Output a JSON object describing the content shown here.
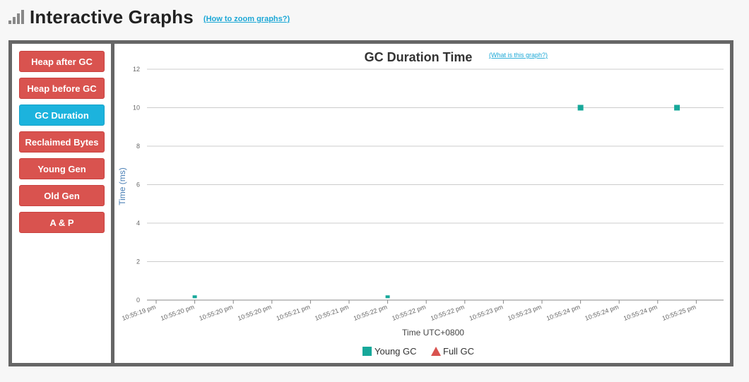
{
  "header": {
    "title": "Interactive Graphs",
    "zoom_link": "(How to zoom graphs?)"
  },
  "sidebar": {
    "items": [
      {
        "label": "Heap after GC",
        "active": false
      },
      {
        "label": "Heap before GC",
        "active": false
      },
      {
        "label": "GC Duration",
        "active": true
      },
      {
        "label": "Reclaimed Bytes",
        "active": false
      },
      {
        "label": "Young Gen",
        "active": false
      },
      {
        "label": "Old Gen",
        "active": false
      },
      {
        "label": "A & P",
        "active": false
      }
    ]
  },
  "colors": {
    "active": "#1cb3dd",
    "inactive": "#d9534f",
    "young_gc": "#17a89a",
    "full_gc": "#d9534f"
  },
  "chart_data": {
    "type": "scatter",
    "title": "GC Duration Time",
    "help_link": "(What is this graph?)",
    "xlabel": "Time UTC+0800",
    "ylabel": "Time (ms)",
    "ylim": [
      0,
      12
    ],
    "yticks": [
      0,
      2,
      4,
      6,
      8,
      10,
      12
    ],
    "xticks": [
      "10:55:19 pm",
      "10:55:20 pm",
      "10:55:20 pm",
      "10:55:20 pm",
      "10:55:21 pm",
      "10:55:21 pm",
      "10:55:22 pm",
      "10:55:22 pm",
      "10:55:22 pm",
      "10:55:23 pm",
      "10:55:23 pm",
      "10:55:24 pm",
      "10:55:24 pm",
      "10:55:24 pm",
      "10:55:25 pm"
    ],
    "grid": true,
    "legend_position": "bottom",
    "series": [
      {
        "name": "Young GC",
        "marker": "square",
        "points": [
          {
            "x": "10:55:20 pm",
            "y": 0.1
          },
          {
            "x": "10:55:22 pm",
            "y": 0.1
          },
          {
            "x": "10:55:24 pm",
            "y": 10
          },
          {
            "x": "10:55:24 pm",
            "y": 10
          }
        ]
      },
      {
        "name": "Full GC",
        "marker": "triangle",
        "points": []
      }
    ]
  }
}
